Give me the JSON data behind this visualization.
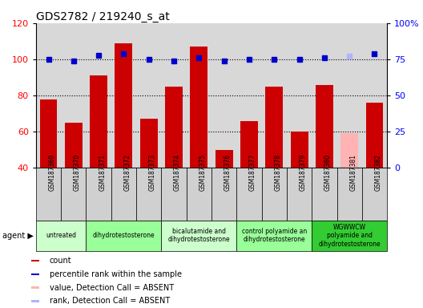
{
  "title": "GDS2782 / 219240_s_at",
  "samples": [
    "GSM187369",
    "GSM187370",
    "GSM187371",
    "GSM187372",
    "GSM187373",
    "GSM187374",
    "GSM187375",
    "GSM187376",
    "GSM187377",
    "GSM187378",
    "GSM187379",
    "GSM187380",
    "GSM187381",
    "GSM187382"
  ],
  "counts": [
    78,
    65,
    91,
    109,
    67,
    85,
    107,
    50,
    66,
    85,
    60,
    86,
    59,
    76
  ],
  "absent_mask": [
    false,
    false,
    false,
    false,
    false,
    false,
    false,
    false,
    false,
    false,
    false,
    false,
    true,
    false
  ],
  "percentile_ranks": [
    75,
    74,
    78,
    79,
    75,
    74,
    76,
    74,
    75,
    75,
    75,
    76,
    77,
    79
  ],
  "absent_rank_mask": [
    false,
    false,
    false,
    false,
    false,
    false,
    false,
    false,
    false,
    false,
    false,
    false,
    true,
    false
  ],
  "bar_color_present": "#cc0000",
  "bar_color_absent": "#ffb3b3",
  "dot_color_present": "#0000cc",
  "dot_color_absent": "#b3b3ff",
  "ylim_left": [
    40,
    120
  ],
  "ylim_right": [
    0,
    100
  ],
  "yticks_left": [
    40,
    60,
    80,
    100,
    120
  ],
  "yticks_right": [
    0,
    25,
    50,
    75,
    100
  ],
  "yticklabels_right": [
    "0",
    "25",
    "50",
    "75",
    "100%"
  ],
  "agent_groups": [
    {
      "label": "untreated",
      "start": 0,
      "end": 2,
      "color": "#ccffcc"
    },
    {
      "label": "dihydrotestosterone",
      "start": 2,
      "end": 5,
      "color": "#99ff99"
    },
    {
      "label": "bicalutamide and\ndihydrotestosterone",
      "start": 5,
      "end": 8,
      "color": "#ccffcc"
    },
    {
      "label": "control polyamide an\ndihydrotestosterone",
      "start": 8,
      "end": 11,
      "color": "#99ff99"
    },
    {
      "label": "WGWWCW\npolyamide and\ndihydrotestosterone",
      "start": 11,
      "end": 14,
      "color": "#33cc33"
    }
  ],
  "legend_items": [
    {
      "label": "count",
      "color": "#cc0000"
    },
    {
      "label": "percentile rank within the sample",
      "color": "#0000cc"
    },
    {
      "label": "value, Detection Call = ABSENT",
      "color": "#ffb3b3"
    },
    {
      "label": "rank, Detection Call = ABSENT",
      "color": "#b3b3ff"
    }
  ],
  "plot_bg": "#d8d8d8",
  "gsm_row_bg": "#d0d0d0",
  "fig_bg": "#ffffff"
}
